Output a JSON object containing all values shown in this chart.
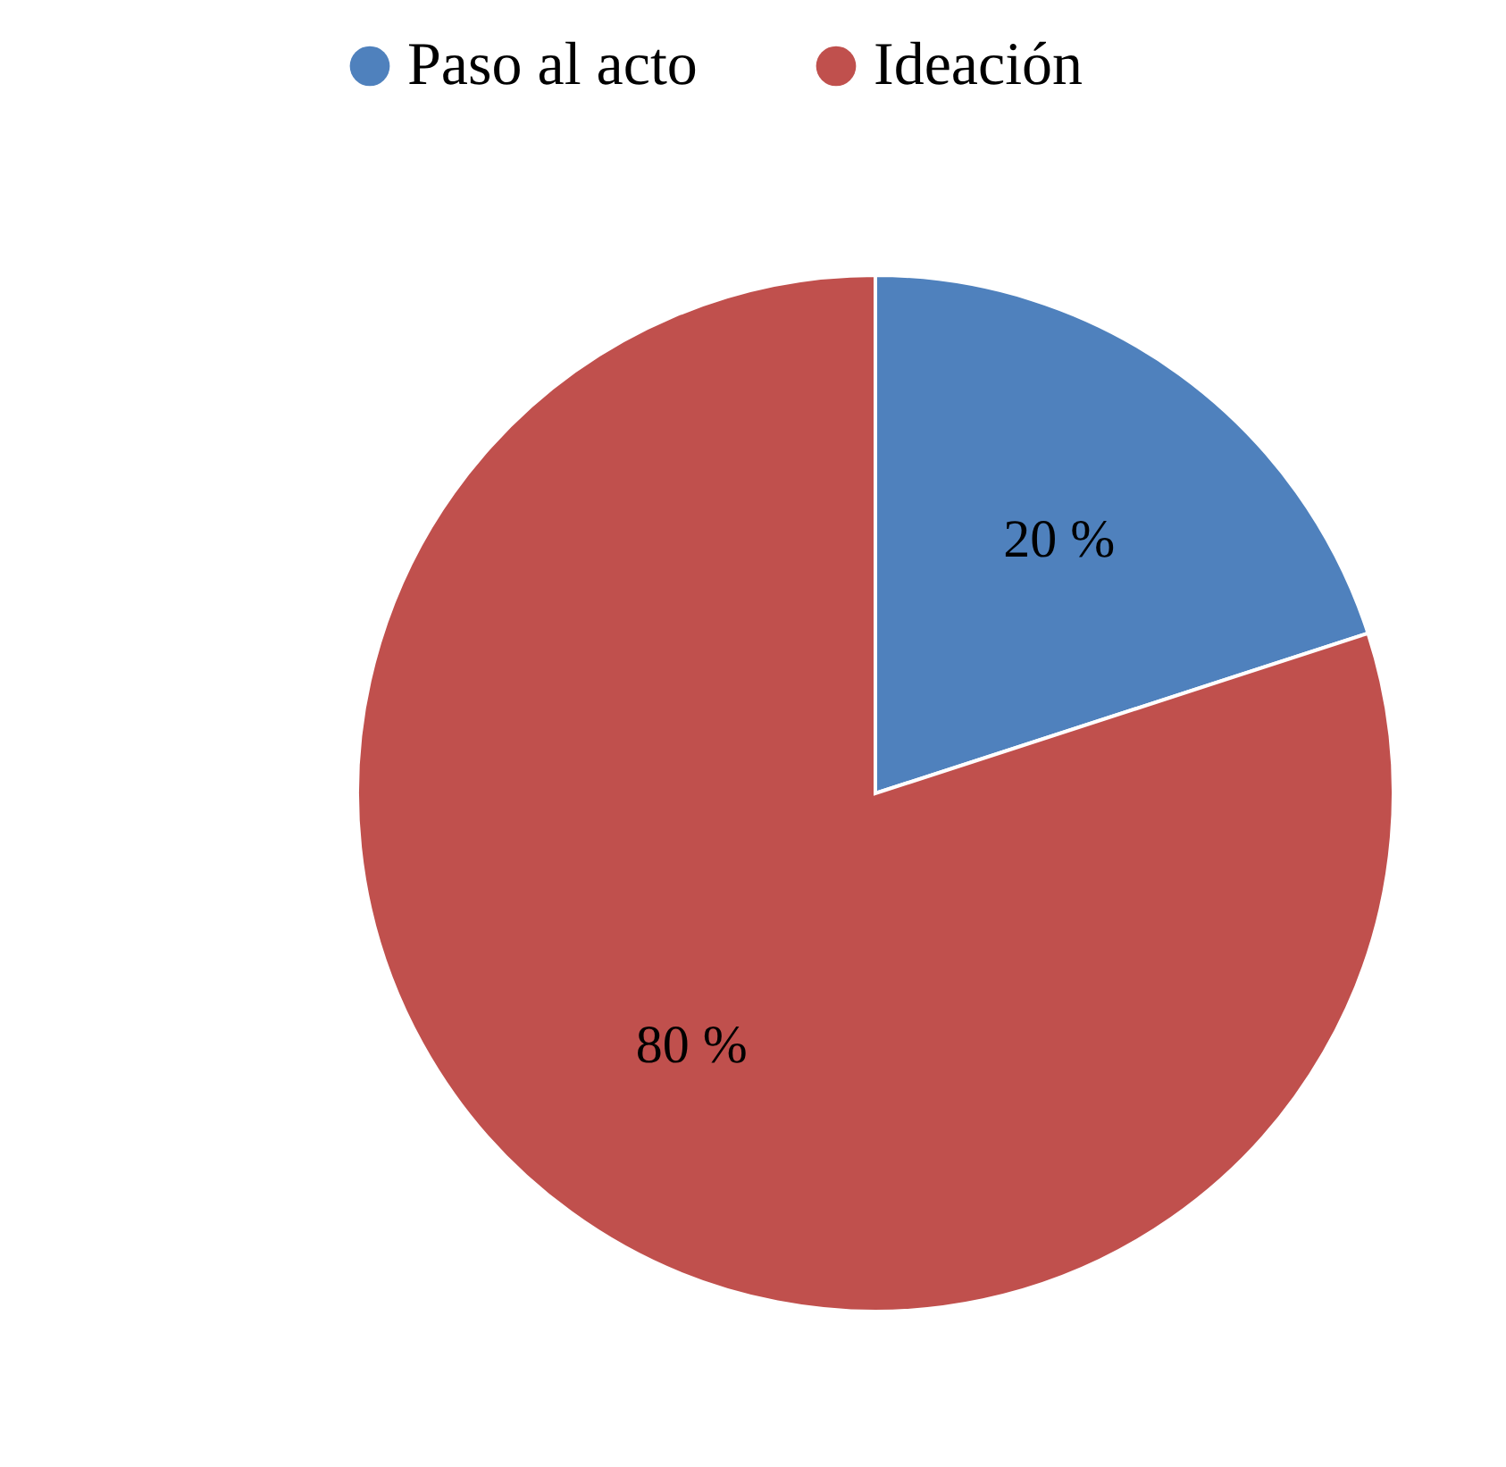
{
  "chart_data": {
    "type": "pie",
    "categories": [
      "Paso al acto",
      "Ideación"
    ],
    "values": [
      20,
      80
    ],
    "colors": [
      "#4f81bd",
      "#c0504d"
    ],
    "value_labels": [
      "20 %",
      "80 %"
    ],
    "legend": "top"
  }
}
